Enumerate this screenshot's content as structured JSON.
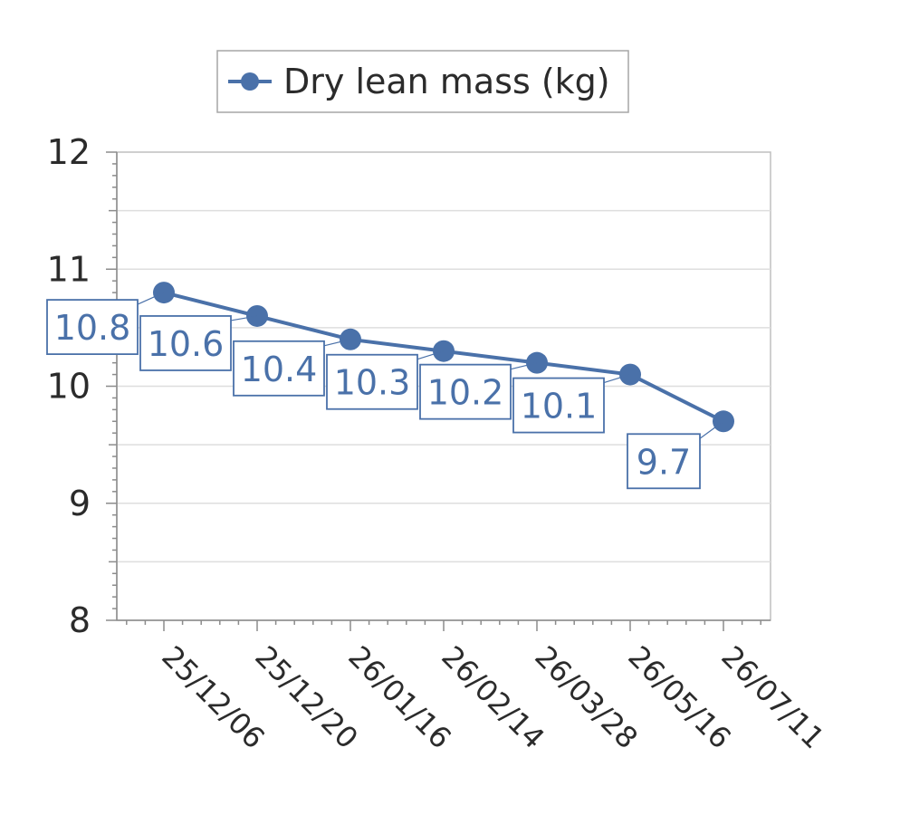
{
  "chart_data": {
    "type": "line",
    "title": "",
    "xlabel": "",
    "ylabel": "",
    "x": [
      "25/12/06",
      "25/12/20",
      "26/01/16",
      "26/02/14",
      "26/03/28",
      "26/05/16",
      "26/07/11"
    ],
    "series": [
      {
        "name": "Dry lean mass (kg)",
        "values": [
          10.8,
          10.6,
          10.4,
          10.3,
          10.2,
          10.1,
          9.7
        ],
        "labels": [
          "10.8",
          "10.6",
          "10.4",
          "10.3",
          "10.2",
          "10.1",
          "9.7"
        ],
        "color": "#4a71a9"
      }
    ],
    "ylim": [
      8,
      12
    ],
    "yticks": [
      "12",
      "11",
      "10",
      "9",
      "8"
    ],
    "grid": true,
    "legend": "top-center",
    "marker": "circle"
  }
}
